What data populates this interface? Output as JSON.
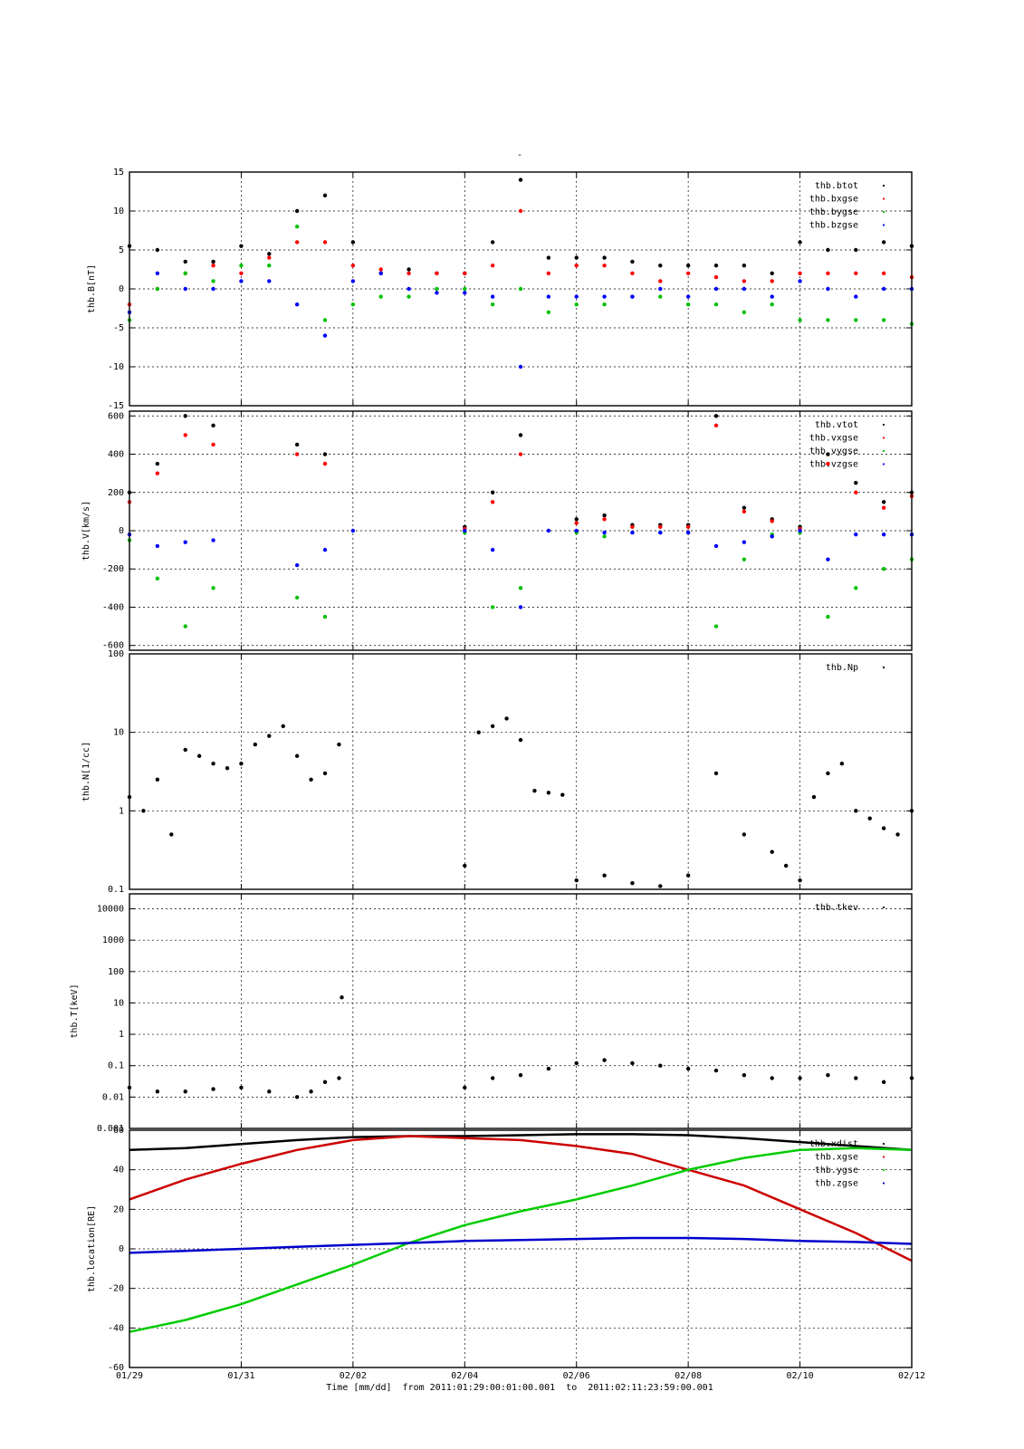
{
  "figure": {
    "title": "-",
    "x_axis_label": "Time [mm/dd]  from 2011:01:29:00:01:00.001  to  2011:02:11:23:59:00.001",
    "x_ticks": [
      "01/29",
      "01/31",
      "02/02",
      "02/04",
      "02/06",
      "02/08",
      "02/10",
      "02/12"
    ]
  },
  "chart_data": [
    {
      "type": "scatter",
      "id": "B",
      "ylabel": "thb.B[nT]",
      "ylim": [
        -15,
        15
      ],
      "y_scale": "linear",
      "y_ticks": [
        "15",
        "10",
        "5",
        "0",
        "-5",
        "-10",
        "-15"
      ],
      "y_tick_values": [
        15,
        10,
        5,
        0,
        -5,
        -10,
        -15
      ],
      "legend_position": "top-right",
      "grid": true,
      "series": [
        {
          "name": "thb.btot",
          "color": "#000000",
          "x": [
            0,
            0.5,
            1,
            1.5,
            2,
            2.5,
            3,
            3.5,
            4,
            4.5,
            5,
            5.5,
            6,
            6.5,
            7,
            7.5,
            8,
            8.5,
            9,
            9.5,
            10,
            10.5,
            11,
            11.5,
            12,
            12.5,
            13,
            13.5,
            14
          ],
          "values": [
            5.5,
            5,
            3.5,
            3.5,
            5.5,
            4.5,
            10,
            12,
            6,
            2,
            2.5,
            2,
            2,
            6,
            14,
            4,
            4,
            4,
            3.5,
            3,
            3,
            3,
            3,
            2,
            6,
            5,
            5,
            6,
            5.5
          ]
        },
        {
          "name": "thb.bxgse",
          "color": "#ff0000",
          "x": [
            0,
            0.5,
            1,
            1.5,
            2,
            2.5,
            3,
            3.5,
            4,
            4.5,
            5,
            5.5,
            6,
            6.5,
            7,
            7.5,
            8,
            8.5,
            9,
            9.5,
            10,
            10.5,
            11,
            11.5,
            12,
            12.5,
            13,
            13.5,
            14
          ],
          "values": [
            -2,
            0,
            2,
            3,
            2,
            4,
            6,
            6,
            3,
            2.5,
            2,
            2,
            2,
            3,
            10,
            2,
            3,
            3,
            2,
            1,
            2,
            1.5,
            1,
            1,
            2,
            2,
            2,
            2,
            1.5
          ]
        },
        {
          "name": "thb.bygse",
          "color": "#00c000",
          "x": [
            0,
            0.5,
            1,
            1.5,
            2,
            2.5,
            3,
            3.5,
            4,
            4.5,
            5,
            5.5,
            6,
            6.5,
            7,
            7.5,
            8,
            8.5,
            9,
            9.5,
            10,
            10.5,
            11,
            11.5,
            12,
            12.5,
            13,
            13.5,
            14
          ],
          "values": [
            -4,
            0,
            2,
            1,
            3,
            3,
            8,
            -4,
            -2,
            -1,
            -1,
            0,
            0,
            -2,
            0,
            -3,
            -2,
            -2,
            -1,
            -1,
            -2,
            -2,
            -3,
            -2,
            -4,
            -4,
            -4,
            -4,
            -4.5
          ]
        },
        {
          "name": "thb.bzgse",
          "color": "#0000ff",
          "x": [
            0,
            0.5,
            1,
            1.5,
            2,
            2.5,
            3,
            3.5,
            4,
            4.5,
            5,
            5.5,
            6,
            6.5,
            7,
            7.5,
            8,
            8.5,
            9,
            9.5,
            10,
            10.5,
            11,
            11.5,
            12,
            12.5,
            13,
            13.5,
            14
          ],
          "values": [
            -3,
            2,
            0,
            0,
            1,
            1,
            -2,
            -6,
            1,
            2,
            0,
            -0.5,
            -0.5,
            -1,
            -10,
            -1,
            -1,
            -1,
            -1,
            0,
            -1,
            0,
            0,
            -1,
            1,
            0,
            -1,
            0,
            0
          ]
        }
      ]
    },
    {
      "type": "scatter",
      "id": "V",
      "ylabel": "thb.V[km/s]",
      "ylim": [
        -625,
        625
      ],
      "y_scale": "linear",
      "y_ticks": [
        "600",
        "400",
        "200",
        "0",
        "-200",
        "-400",
        "-600"
      ],
      "y_tick_values": [
        600,
        400,
        200,
        0,
        -200,
        -400,
        -600
      ],
      "legend_position": "top-right",
      "grid": true,
      "series": [
        {
          "name": "thb.vtot",
          "color": "#000000",
          "x": [
            0,
            0.5,
            1,
            1.5,
            2,
            2.5,
            3,
            3.5,
            4,
            4.5,
            5,
            5.5,
            6,
            6.5,
            7,
            7.5,
            8,
            8.5,
            9,
            9.5,
            10,
            10.5,
            11,
            11.5,
            12,
            12.5,
            13,
            13.5,
            14
          ],
          "values": [
            200,
            350,
            600,
            550,
            null,
            null,
            450,
            400,
            null,
            null,
            null,
            null,
            20,
            200,
            500,
            null,
            60,
            80,
            30,
            30,
            30,
            600,
            120,
            60,
            20,
            400,
            250,
            150,
            200
          ]
        },
        {
          "name": "thb.vxgse",
          "color": "#ff0000",
          "x": [
            0,
            0.5,
            1,
            1.5,
            2,
            2.5,
            3,
            3.5,
            4,
            4.5,
            5,
            5.5,
            6,
            6.5,
            7,
            7.5,
            8,
            8.5,
            9,
            9.5,
            10,
            10.5,
            11,
            11.5,
            12,
            12.5,
            13,
            13.5,
            14
          ],
          "values": [
            150,
            300,
            500,
            450,
            null,
            null,
            400,
            350,
            null,
            null,
            null,
            null,
            10,
            150,
            400,
            null,
            40,
            60,
            20,
            20,
            20,
            550,
            100,
            50,
            10,
            350,
            200,
            120,
            180
          ]
        },
        {
          "name": "thb.vygse",
          "color": "#00c000",
          "x": [
            0,
            0.5,
            1,
            1.5,
            2,
            2.5,
            3,
            3.5,
            4,
            4.5,
            5,
            5.5,
            6,
            6.5,
            7,
            7.5,
            8,
            8.5,
            9,
            9.5,
            10,
            10.5,
            11,
            11.5,
            12,
            12.5,
            13,
            13.5,
            14
          ],
          "values": [
            -50,
            -250,
            -500,
            -300,
            null,
            null,
            -350,
            -450,
            null,
            null,
            null,
            null,
            -10,
            -400,
            -300,
            null,
            -10,
            -30,
            -10,
            -10,
            -10,
            -500,
            -150,
            -20,
            -10,
            -450,
            -300,
            -200,
            -150
          ]
        },
        {
          "name": "thb.vzgse",
          "color": "#0000ff",
          "x": [
            0,
            0.5,
            1,
            1.5,
            2,
            2.5,
            3,
            3.5,
            4,
            4.5,
            5,
            5.5,
            6,
            6.5,
            7,
            7.5,
            8,
            8.5,
            9,
            9.5,
            10,
            10.5,
            11,
            11.5,
            12,
            12.5,
            13,
            13.5,
            14
          ],
          "values": [
            -20,
            -80,
            -60,
            -50,
            null,
            null,
            -180,
            -100,
            0,
            null,
            null,
            null,
            0,
            -100,
            -400,
            0,
            0,
            -10,
            -10,
            -10,
            -10,
            -80,
            -60,
            -30,
            0,
            -150,
            -20,
            -20,
            -20
          ]
        }
      ]
    },
    {
      "type": "scatter",
      "id": "N",
      "ylabel": "thb.N[1/cc]",
      "ylim": [
        0.1,
        100
      ],
      "y_scale": "log",
      "y_ticks": [
        "100",
        "10",
        "1",
        "0.1"
      ],
      "y_tick_values": [
        100,
        10,
        1,
        0.1
      ],
      "legend_position": "top-right",
      "grid": true,
      "series": [
        {
          "name": "thb.Np",
          "color": "#000000",
          "x": [
            0,
            0.25,
            0.5,
            0.75,
            1,
            1.25,
            1.5,
            1.75,
            2,
            2.25,
            2.5,
            2.75,
            3,
            3.25,
            3.5,
            3.75,
            6,
            6.25,
            6.5,
            6.75,
            7,
            7.25,
            7.5,
            7.75,
            8,
            8.5,
            9,
            9.5,
            10,
            10.5,
            11,
            11.5,
            11.75,
            12,
            12.25,
            12.5,
            12.75,
            13,
            13.25,
            13.5,
            13.75,
            14
          ],
          "values": [
            1.5,
            1,
            2.5,
            0.5,
            6,
            5,
            4,
            3.5,
            4,
            7,
            9,
            12,
            5,
            2.5,
            3,
            7,
            0.2,
            10,
            12,
            15,
            8,
            1.8,
            1.7,
            1.6,
            0.13,
            0.15,
            0.12,
            0.11,
            0.15,
            3,
            0.5,
            0.3,
            0.2,
            0.13,
            1.5,
            3,
            4,
            1,
            0.8,
            0.6,
            0.5,
            1
          ]
        }
      ]
    },
    {
      "type": "scatter",
      "id": "T",
      "ylabel": "thb.T[keV]",
      "ylim": [
        0.001,
        30000
      ],
      "y_scale": "log",
      "y_ticks": [
        "10000",
        "1000",
        "100",
        "10",
        "1",
        "0.1",
        "0.01",
        "0.001"
      ],
      "y_tick_values": [
        10000,
        1000,
        100,
        10,
        1,
        0.1,
        0.01,
        0.001
      ],
      "legend_position": "top-right",
      "grid": true,
      "series": [
        {
          "name": "thb.tkev",
          "color": "#000000",
          "x": [
            0,
            0.5,
            1,
            1.5,
            2,
            2.5,
            3,
            3.25,
            3.5,
            3.75,
            3.8,
            6,
            6.5,
            7,
            7.5,
            8,
            8.5,
            9,
            9.5,
            10,
            10.5,
            11,
            11.5,
            12,
            12.5,
            13,
            13.5,
            14
          ],
          "values": [
            0.02,
            0.015,
            0.015,
            0.018,
            0.02,
            0.015,
            0.01,
            0.015,
            0.03,
            0.04,
            15,
            0.02,
            0.04,
            0.05,
            0.08,
            0.12,
            0.15,
            0.12,
            0.1,
            0.08,
            0.07,
            0.05,
            0.04,
            0.04,
            0.05,
            0.04,
            0.03,
            0.04
          ]
        }
      ]
    },
    {
      "type": "line",
      "id": "location",
      "ylabel": "thb.location[RE]",
      "ylim": [
        -60,
        60
      ],
      "y_scale": "linear",
      "y_ticks": [
        "60",
        "40",
        "20",
        "0",
        "-20",
        "-40",
        "-60"
      ],
      "y_tick_values": [
        60,
        40,
        20,
        0,
        -20,
        -40,
        -60
      ],
      "legend_position": "top-right",
      "grid": true,
      "series": [
        {
          "name": "thb.xdist",
          "color": "#000000",
          "x": [
            0,
            1,
            2,
            3,
            4,
            5,
            6,
            7,
            8,
            9,
            10,
            11,
            12,
            13,
            14
          ],
          "values": [
            50,
            51,
            53,
            55,
            56.5,
            57,
            57,
            57.5,
            58,
            58,
            57.5,
            56,
            54,
            52,
            50
          ]
        },
        {
          "name": "thb.xgse",
          "color": "#cc0000",
          "x": [
            0,
            1,
            2,
            3,
            4,
            5,
            6,
            7,
            8,
            9,
            10,
            11,
            12,
            13,
            14
          ],
          "values": [
            25,
            35,
            43,
            50,
            55,
            57,
            56,
            55,
            52,
            48,
            40,
            32,
            20,
            8,
            -6
          ]
        },
        {
          "name": "thb.ygse",
          "color": "#00cc00",
          "x": [
            0,
            1,
            2,
            3,
            4,
            5,
            6,
            7,
            8,
            9,
            10,
            11,
            12,
            13,
            14
          ],
          "values": [
            -42,
            -36,
            -28,
            -18,
            -8,
            3,
            12,
            19,
            25,
            32,
            40,
            46,
            50,
            51,
            50
          ]
        },
        {
          "name": "thb.zgse",
          "color": "#0000cc",
          "x": [
            0,
            1,
            2,
            3,
            4,
            5,
            6,
            7,
            8,
            9,
            10,
            11,
            12,
            13,
            14
          ],
          "values": [
            -2,
            -1,
            0,
            1,
            2,
            3,
            4,
            4.5,
            5,
            5.5,
            5.5,
            5,
            4,
            3.5,
            2.5
          ]
        }
      ]
    }
  ]
}
